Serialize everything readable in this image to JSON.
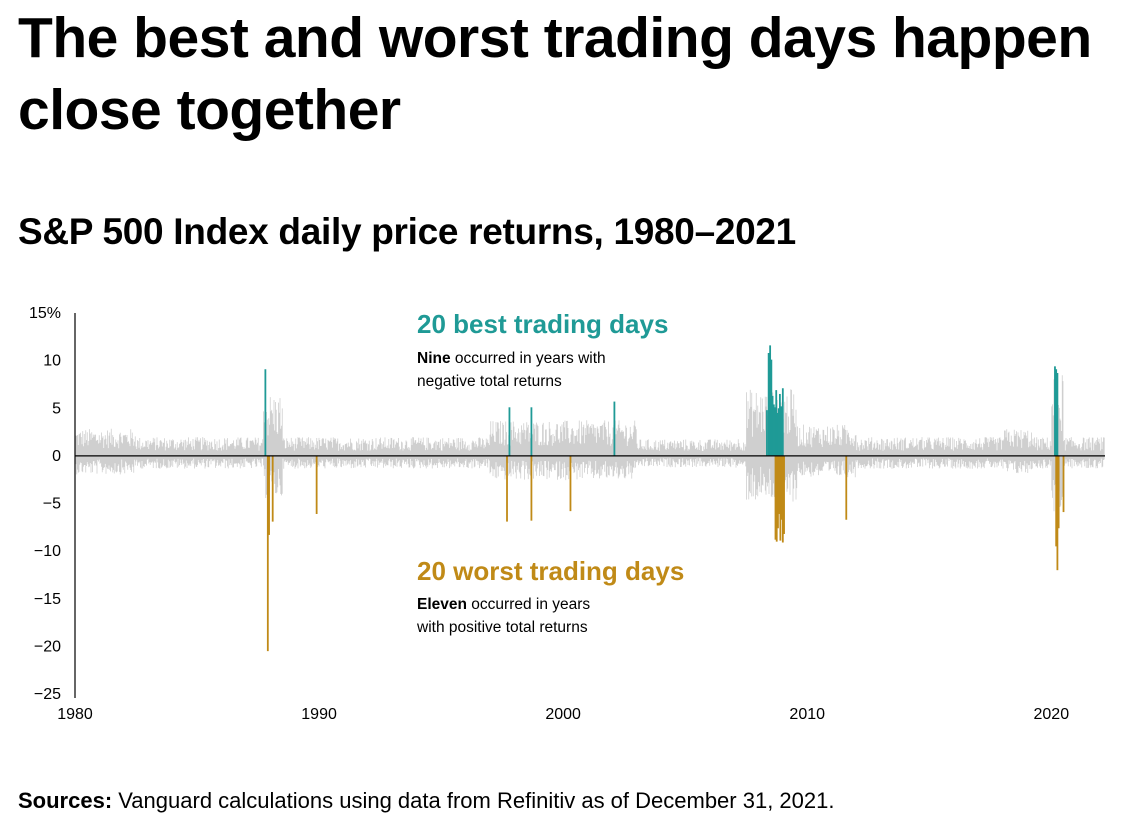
{
  "header": {
    "title": "The best and worst trading days happen close together",
    "subtitle": "S&P 500 Index daily price returns, 1980–2021"
  },
  "colors": {
    "best": "#1f9a96",
    "worst": "#c08a17",
    "background_returns": "#cfcfcf",
    "axis": "#000000"
  },
  "annotations": {
    "best": {
      "title": "20 best trading days",
      "bold": "Nine",
      "line1": " occurred in years with",
      "line2": "negative total returns"
    },
    "worst": {
      "title": "20 worst trading days",
      "bold": "Eleven",
      "line1": " occurred in years",
      "line2": "with positive total returns"
    }
  },
  "footer": {
    "sources_label": "Sources:",
    "sources_text": " Vanguard calculations using data from Refinitiv as of December 31, 2021."
  },
  "chart_data": {
    "type": "bar",
    "title": "S&P 500 Index daily price returns, 1980–2021",
    "xlabel": "",
    "ylabel": "",
    "xlim": [
      1980,
      2022.2
    ],
    "ylim": [
      -25,
      15
    ],
    "x_ticks": [
      1980,
      1990,
      2000,
      2010,
      2020
    ],
    "y_ticks": [
      {
        "value": 15,
        "label": "15%"
      },
      {
        "value": 10,
        "label": "10"
      },
      {
        "value": 5,
        "label": "5"
      },
      {
        "value": 0,
        "label": "0"
      },
      {
        "value": -5,
        "label": "−5"
      },
      {
        "value": -10,
        "label": "−10"
      },
      {
        "value": -15,
        "label": "−15"
      },
      {
        "value": -20,
        "label": "−20"
      },
      {
        "value": -25,
        "label": "−25"
      }
    ],
    "series": [
      {
        "name": "20 best trading days",
        "points": [
          {
            "x": 1987.8,
            "y": 9.1
          },
          {
            "x": 1997.8,
            "y": 5.1
          },
          {
            "x": 1998.7,
            "y": 5.1
          },
          {
            "x": 2002.1,
            "y": 5.7
          },
          {
            "x": 2008.35,
            "y": 4.8
          },
          {
            "x": 2008.42,
            "y": 10.8
          },
          {
            "x": 2008.48,
            "y": 11.6
          },
          {
            "x": 2008.53,
            "y": 10.1
          },
          {
            "x": 2008.58,
            "y": 6.3
          },
          {
            "x": 2008.63,
            "y": 5.4
          },
          {
            "x": 2008.68,
            "y": 5.1
          },
          {
            "x": 2008.73,
            "y": 6.9
          },
          {
            "x": 2008.78,
            "y": 4.5
          },
          {
            "x": 2008.83,
            "y": 5.0
          },
          {
            "x": 2008.88,
            "y": 6.5
          },
          {
            "x": 2008.93,
            "y": 5.2
          },
          {
            "x": 2009.0,
            "y": 7.1
          },
          {
            "x": 2020.15,
            "y": 9.4
          },
          {
            "x": 2020.2,
            "y": 9.1
          },
          {
            "x": 2020.25,
            "y": 8.7
          }
        ]
      },
      {
        "name": "20 worst trading days",
        "points": [
          {
            "x": 1987.9,
            "y": -20.5
          },
          {
            "x": 1987.95,
            "y": -8.3
          },
          {
            "x": 1988.1,
            "y": -6.9
          },
          {
            "x": 1989.9,
            "y": -6.1
          },
          {
            "x": 1997.7,
            "y": -6.9
          },
          {
            "x": 1998.7,
            "y": -6.8
          },
          {
            "x": 2000.3,
            "y": -5.8
          },
          {
            "x": 2008.7,
            "y": -8.8
          },
          {
            "x": 2008.75,
            "y": -9.0
          },
          {
            "x": 2008.8,
            "y": -7.6
          },
          {
            "x": 2008.85,
            "y": -6.1
          },
          {
            "x": 2008.9,
            "y": -8.9
          },
          {
            "x": 2008.95,
            "y": -6.7
          },
          {
            "x": 2009.0,
            "y": -9.1
          },
          {
            "x": 2009.05,
            "y": -8.2
          },
          {
            "x": 2011.6,
            "y": -6.7
          },
          {
            "x": 2020.2,
            "y": -9.5
          },
          {
            "x": 2020.25,
            "y": -12.0
          },
          {
            "x": 2020.3,
            "y": -7.6
          },
          {
            "x": 2020.5,
            "y": -5.9
          }
        ]
      }
    ]
  }
}
